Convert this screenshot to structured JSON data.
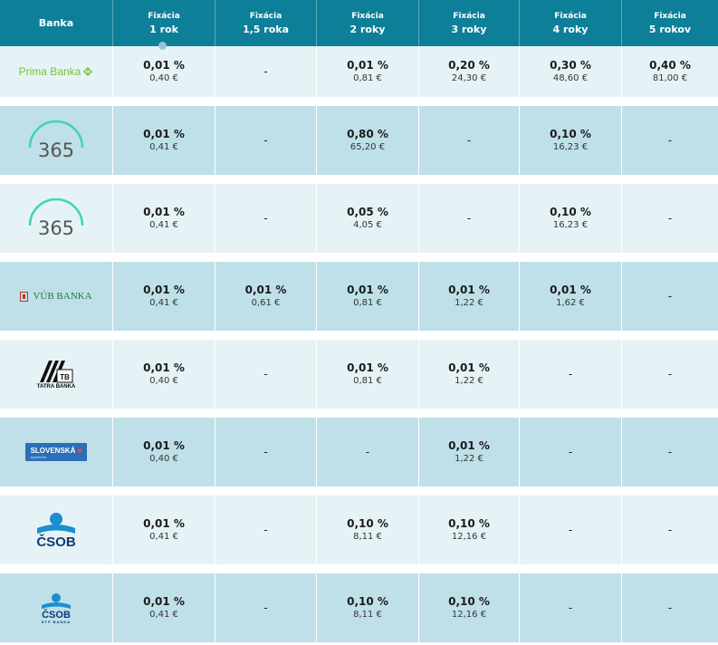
{
  "header": {
    "bank_label": "Banka",
    "columns": [
      {
        "top": "Fixácia",
        "bottom": "1 rok"
      },
      {
        "top": "Fixácia",
        "bottom": "1,5 roka"
      },
      {
        "top": "Fixácia",
        "bottom": "2 roky"
      },
      {
        "top": "Fixácia",
        "bottom": "3 roky"
      },
      {
        "top": "Fixácia",
        "bottom": "4 roky"
      },
      {
        "top": "Fixácia",
        "bottom": "5 rokov"
      }
    ]
  },
  "dash": "-",
  "logos": {
    "prima": "Prima Banka",
    "n365": "365",
    "vub": "VÚB BANKA",
    "tatra": "TATRA BANKA",
    "tatra_mark": "TB",
    "slsp": "SLOVENSKÁ",
    "slsp_sub": "sporiteľňa",
    "csob": "ČSOB",
    "csob_sub": "ETP BANKA"
  },
  "rows": [
    {
      "cells": [
        {
          "rate": "0,01 %",
          "fee": "0,40 €"
        },
        null,
        {
          "rate": "0,01 %",
          "fee": "0,81 €"
        },
        {
          "rate": "0,20 %",
          "fee": "24,30 €"
        },
        {
          "rate": "0,30 %",
          "fee": "48,60 €"
        },
        {
          "rate": "0,40 %",
          "fee": "81,00 €"
        }
      ]
    },
    {
      "cells": [
        {
          "rate": "0,01 %",
          "fee": "0,41 €"
        },
        null,
        {
          "rate": "0,80 %",
          "fee": "65,20 €"
        },
        null,
        {
          "rate": "0,10 %",
          "fee": "16,23 €"
        },
        null
      ]
    },
    {
      "cells": [
        {
          "rate": "0,01 %",
          "fee": "0,41 €"
        },
        null,
        {
          "rate": "0,05 %",
          "fee": "4,05 €"
        },
        null,
        {
          "rate": "0,10 %",
          "fee": "16,23 €"
        },
        null
      ]
    },
    {
      "cells": [
        {
          "rate": "0,01 %",
          "fee": "0,41 €"
        },
        {
          "rate": "0,01 %",
          "fee": "0,61 €"
        },
        {
          "rate": "0,01 %",
          "fee": "0,81 €"
        },
        {
          "rate": "0,01 %",
          "fee": "1,22 €"
        },
        {
          "rate": "0,01 %",
          "fee": "1,62 €"
        },
        null
      ]
    },
    {
      "cells": [
        {
          "rate": "0,01 %",
          "fee": "0,40 €"
        },
        null,
        {
          "rate": "0,01 %",
          "fee": "0,81 €"
        },
        {
          "rate": "0,01 %",
          "fee": "1,22 €"
        },
        null,
        null
      ]
    },
    {
      "cells": [
        {
          "rate": "0,01 %",
          "fee": "0,40 €"
        },
        null,
        null,
        {
          "rate": "0,01 %",
          "fee": "1,22 €"
        },
        null,
        null
      ]
    },
    {
      "cells": [
        {
          "rate": "0,01 %",
          "fee": "0,41 €"
        },
        null,
        {
          "rate": "0,10 %",
          "fee": "8,11 €"
        },
        {
          "rate": "0,10 %",
          "fee": "12,16 €"
        },
        null,
        null
      ]
    },
    {
      "cells": [
        {
          "rate": "0,01 %",
          "fee": "0,41 €"
        },
        null,
        {
          "rate": "0,10 %",
          "fee": "8,11 €"
        },
        {
          "rate": "0,10 %",
          "fee": "12,16 €"
        },
        null,
        null
      ]
    }
  ]
}
